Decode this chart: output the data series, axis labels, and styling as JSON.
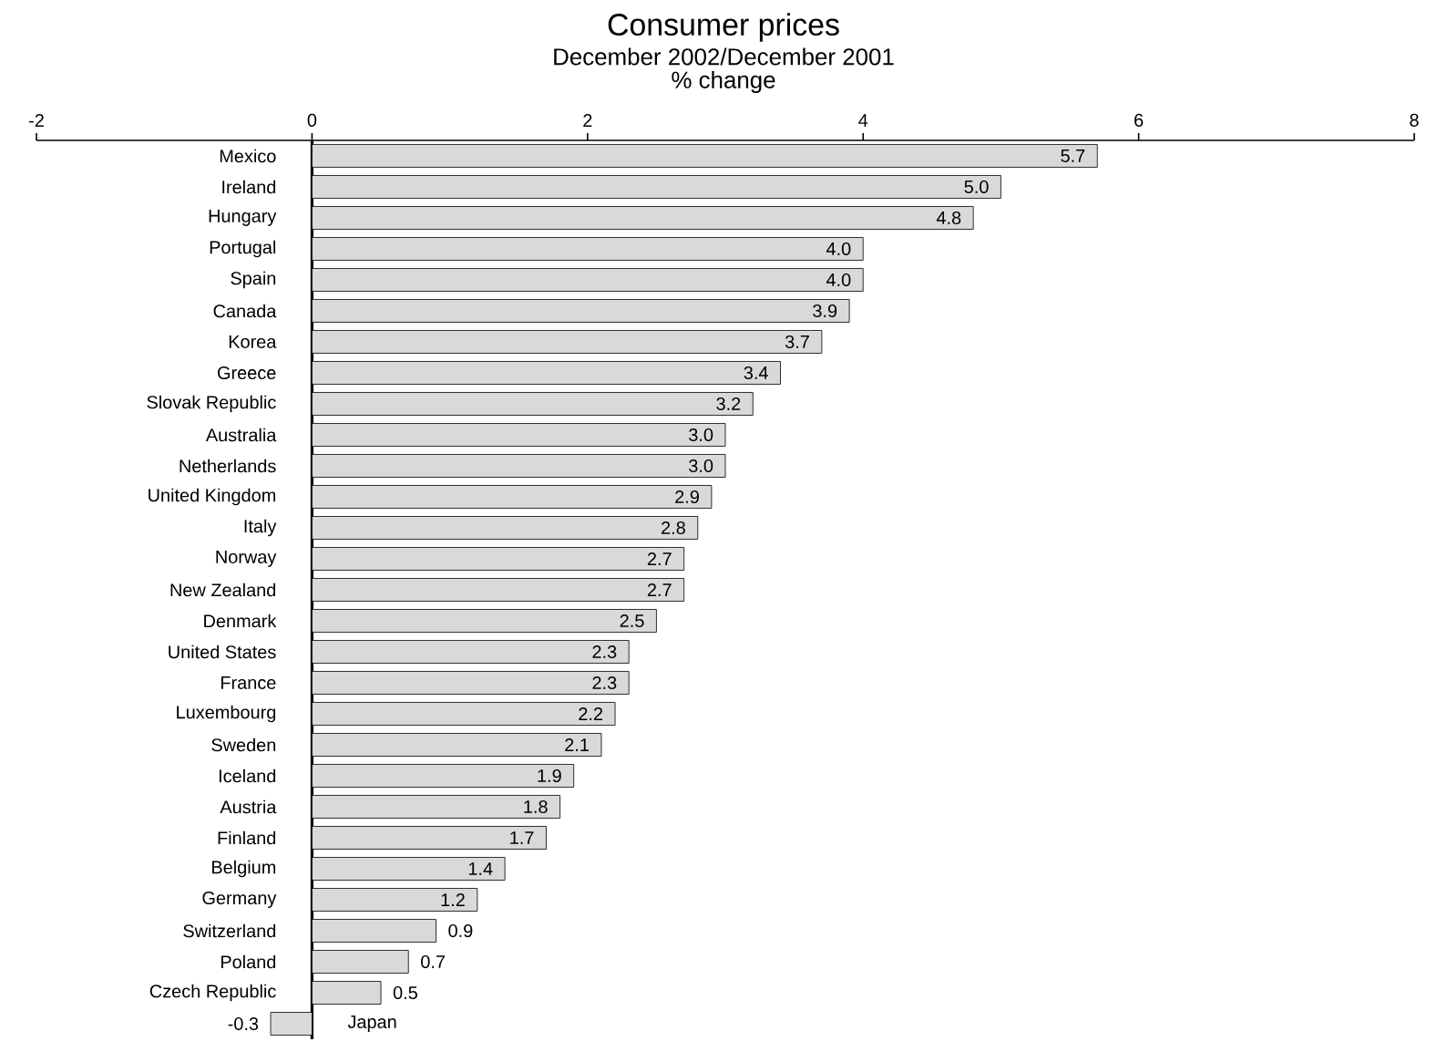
{
  "chart_data": {
    "type": "bar",
    "orientation": "horizontal",
    "title": "Consumer prices",
    "subtitle": "December 2002/December 2001",
    "xlabel": "% change",
    "categories": [
      "Mexico",
      "Ireland",
      "Hungary",
      "Portugal",
      "Spain",
      "Canada",
      "Korea",
      "Greece",
      "Slovak Republic",
      "Australia",
      "Netherlands",
      "United Kingdom",
      "Italy",
      "Norway",
      "New Zealand",
      "Denmark",
      "United States",
      "France",
      "Luxembourg",
      "Sweden",
      "Iceland",
      "Austria",
      "Finland",
      "Belgium",
      "Germany",
      "Switzerland",
      "Poland",
      "Czech Republic",
      "Japan"
    ],
    "values": [
      5.7,
      5.0,
      4.8,
      4.0,
      4.0,
      3.9,
      3.7,
      3.4,
      3.2,
      3.0,
      3.0,
      2.9,
      2.8,
      2.7,
      2.7,
      2.5,
      2.3,
      2.3,
      2.2,
      2.1,
      1.9,
      1.8,
      1.7,
      1.4,
      1.2,
      0.9,
      0.7,
      0.5,
      -0.3
    ],
    "value_labels": [
      "5.7",
      "5.0",
      "4.8",
      "4.0",
      "4.0",
      "3.9",
      "3.7",
      "3.4",
      "3.2",
      "3.0",
      "3.0",
      "2.9",
      "2.8",
      "2.7",
      "2.7",
      "2.5",
      "2.3",
      "2.3",
      "2.2",
      "2.1",
      "1.9",
      "1.8",
      "1.7",
      "1.4",
      "1.2",
      "0.9",
      "0.7",
      "0.5",
      "-0.3"
    ],
    "color": "#d9d9d9",
    "xlim": [
      -2,
      8
    ],
    "xticks": [
      -2,
      0,
      2,
      4,
      6,
      8
    ]
  }
}
